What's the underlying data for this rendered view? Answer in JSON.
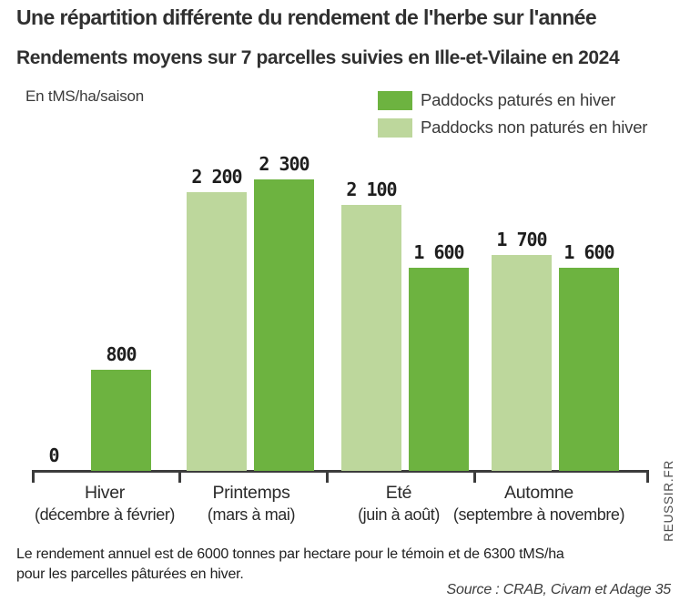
{
  "header": {
    "title": "Une répartition différente du rendement de l'herbe sur l'année",
    "subtitle": "Rendements moyens sur 7 parcelles suivies en Ille-et-Vilaine en 2024"
  },
  "unit_label": "En tMS/ha/saison",
  "legend": {
    "items": [
      {
        "label": "Paddocks paturés en hiver",
        "color": "#6db340"
      },
      {
        "label": "Paddocks non paturés en hiver",
        "color": "#bdd79c"
      }
    ]
  },
  "chart_data": {
    "type": "bar",
    "grouping": "grouped",
    "title": "Une répartition différente du rendement de l'herbe sur l'année",
    "subtitle": "Rendements moyens sur 7 parcelles suivies en Ille-et-Vilaine en 2024",
    "ylabel": "En tMS/ha/saison",
    "ylim": [
      0,
      2300
    ],
    "grid": false,
    "legend_position": "top-right",
    "value_labels_shown": true,
    "categories": [
      "Hiver",
      "Printemps",
      "Eté",
      "Automne"
    ],
    "category_sublabels": [
      "(décembre à février)",
      "(mars à mai)",
      "(juin à août)",
      "(septembre à novembre)"
    ],
    "series": [
      {
        "name": "Paddocks non paturés en hiver",
        "color": "#bdd79c",
        "values": [
          0,
          2200,
          2100,
          1700
        ],
        "value_labels": [
          "0",
          "2 200",
          "2 100",
          "1 700"
        ]
      },
      {
        "name": "Paddocks paturés en hiver",
        "color": "#6db340",
        "values": [
          800,
          2300,
          1600,
          1600
        ],
        "value_labels": [
          "800",
          "2 300",
          "1 600",
          "1 600"
        ]
      }
    ]
  },
  "footer": {
    "note_line1": "Le rendement annuel est de 6000 tonnes par hectare pour le témoin et de 6300 tMS/ha",
    "note_line2": "pour les parcelles pâturées en hiver.",
    "source": "Source : CRAB, Civam et  Adage 35"
  },
  "watermark": "REUSSIR.FR"
}
